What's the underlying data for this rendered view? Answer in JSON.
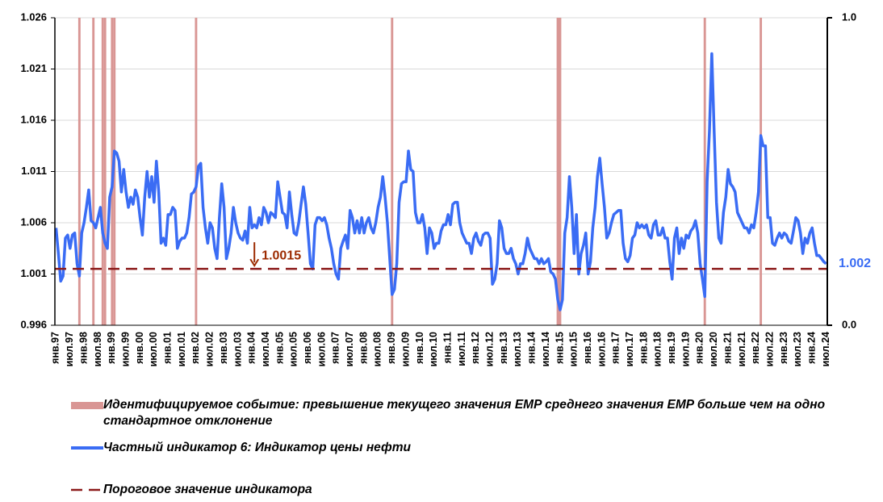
{
  "chart_data": {
    "type": "line",
    "categories": [
      "янв.97",
      null,
      null,
      null,
      null,
      null,
      "июл.97",
      null,
      null,
      null,
      null,
      null,
      "янв.98",
      null,
      null,
      null,
      null,
      null,
      "июл.98",
      null,
      null,
      null,
      null,
      null,
      "янв.99",
      null,
      null,
      null,
      null,
      null,
      "июл.99",
      null,
      null,
      null,
      null,
      null,
      "янв.00",
      null,
      null,
      null,
      null,
      null,
      "июл.00",
      null,
      null,
      null,
      null,
      null,
      "янв.01",
      null,
      null,
      null,
      null,
      null,
      "июл.01",
      null,
      null,
      null,
      null,
      null,
      "янв.02",
      null,
      null,
      null,
      null,
      null,
      "июл.02",
      null,
      null,
      null,
      null,
      null,
      "янв.03",
      null,
      null,
      null,
      null,
      null,
      "июл.03",
      null,
      null,
      null,
      null,
      null,
      "янв.04",
      null,
      null,
      null,
      null,
      null,
      "июл.04",
      null,
      null,
      null,
      null,
      null,
      "янв.05",
      null,
      null,
      null,
      null,
      null,
      "июл.05",
      null,
      null,
      null,
      null,
      null,
      "янв.06",
      null,
      null,
      null,
      null,
      null,
      "июл.06",
      null,
      null,
      null,
      null,
      null,
      "янв.07",
      null,
      null,
      null,
      null,
      null,
      "июл.07",
      null,
      null,
      null,
      null,
      null,
      "янв.08",
      null,
      null,
      null,
      null,
      null,
      "июл.08",
      null,
      null,
      null,
      null,
      null,
      "янв.09",
      null,
      null,
      null,
      null,
      null,
      "июл.09",
      null,
      null,
      null,
      null,
      null,
      "янв.10",
      null,
      null,
      null,
      null,
      null,
      "июл.10",
      null,
      null,
      null,
      null,
      null,
      "янв.11",
      null,
      null,
      null,
      null,
      null,
      "июл.11",
      null,
      null,
      null,
      null,
      null,
      "янв.12",
      null,
      null,
      null,
      null,
      null,
      "июл.12",
      null,
      null,
      null,
      null,
      null,
      "янв.13",
      null,
      null,
      null,
      null,
      null,
      "июл.13",
      null,
      null,
      null,
      null,
      null,
      "янв.14",
      null,
      null,
      null,
      null,
      null,
      "июл.14",
      null,
      null,
      null,
      null,
      null,
      "янв.15",
      null,
      null,
      null,
      null,
      null,
      "июл.15",
      null,
      null,
      null,
      null,
      null,
      "янв.16",
      null,
      null,
      null,
      null,
      null,
      "июл.16",
      null,
      null,
      null,
      null,
      null,
      "янв.17",
      null,
      null,
      null,
      null,
      null,
      "июл.17",
      null,
      null,
      null,
      null,
      null,
      "янв.18",
      null,
      null,
      null,
      null,
      null,
      "июл.18",
      null,
      null,
      null,
      null,
      null,
      "янв.19",
      null,
      null,
      null,
      null,
      null,
      "июл.19",
      null,
      null,
      null,
      null,
      null,
      "янв.20",
      null,
      null,
      null,
      null,
      null,
      "июл.20",
      null,
      null,
      null,
      null,
      null,
      "янв.21",
      null,
      null,
      null,
      null,
      null,
      "июл.21",
      null,
      null,
      null,
      null,
      null,
      "янв.22",
      null,
      null,
      null,
      null,
      null,
      "июл.22",
      null,
      null,
      null,
      null,
      null,
      "янв.23",
      null,
      null,
      null,
      null,
      null,
      "июл.23",
      null,
      null,
      null,
      null,
      null,
      "янв.24",
      null,
      null,
      null,
      null,
      null,
      "июл.24"
    ],
    "series": [
      {
        "name": "Идентифицируемое событие: превышение текущего значения EMP среднего значения EMP больше чем на одно стандартное отклонение",
        "type": "bar",
        "axis": "y2",
        "color": "#d99694",
        "values": [
          0,
          0,
          0,
          0,
          0,
          0,
          0,
          0,
          0,
          0,
          1,
          0,
          0,
          0,
          0,
          0,
          1,
          0,
          0,
          0,
          1,
          1,
          0,
          0,
          1,
          1,
          0,
          0,
          0,
          0,
          0,
          0,
          0,
          0,
          0,
          0,
          0,
          0,
          0,
          0,
          0,
          0,
          0,
          0,
          0,
          0,
          0,
          0,
          0,
          0,
          0,
          0,
          0,
          0,
          0,
          0,
          0,
          0,
          0,
          0,
          1,
          0,
          0,
          0,
          0,
          0,
          0,
          0,
          0,
          0,
          0,
          0,
          0,
          0,
          0,
          0,
          0,
          0,
          0,
          0,
          0,
          0,
          0,
          0,
          0,
          0,
          0,
          0,
          0,
          0,
          0,
          0,
          0,
          0,
          0,
          0,
          0,
          0,
          0,
          0,
          0,
          0,
          0,
          0,
          0,
          0,
          0,
          0,
          0,
          0,
          0,
          0,
          0,
          0,
          0,
          0,
          0,
          0,
          0,
          0,
          0,
          0,
          0,
          0,
          0,
          0,
          0,
          0,
          0,
          0,
          0,
          0,
          0,
          0,
          0,
          0,
          0,
          0,
          0,
          0,
          0,
          0,
          0,
          0,
          1,
          0,
          0,
          0,
          0,
          0,
          0,
          0,
          0,
          0,
          0,
          0,
          0,
          0,
          0,
          0,
          0,
          0,
          0,
          0,
          0,
          0,
          0,
          0,
          0,
          0,
          0,
          0,
          0,
          0,
          0,
          0,
          0,
          0,
          0,
          0,
          0,
          0,
          0,
          0,
          0,
          0,
          0,
          0,
          0,
          0,
          0,
          0,
          0,
          0,
          0,
          0,
          0,
          0,
          0,
          0,
          0,
          0,
          0,
          0,
          0,
          0,
          0,
          0,
          0,
          0,
          0,
          0,
          0,
          0,
          0,
          1,
          1,
          0,
          0,
          0,
          0,
          0,
          0,
          0,
          0,
          0,
          0,
          0,
          0,
          0,
          0,
          0,
          0,
          0,
          0,
          0,
          0,
          0,
          0,
          0,
          0,
          0,
          0,
          0,
          0,
          0,
          0,
          0,
          0,
          0,
          0,
          0,
          0,
          0,
          0,
          0,
          0,
          0,
          0,
          0,
          0,
          0,
          0,
          0,
          0,
          0,
          0,
          0,
          0,
          0,
          0,
          0,
          0,
          0,
          0,
          0,
          0,
          0,
          1,
          0,
          0,
          0,
          0,
          0,
          0,
          0,
          0,
          0,
          0,
          0,
          0,
          0,
          0,
          0,
          0,
          0,
          0,
          0,
          0,
          0,
          0,
          0,
          1,
          0,
          0,
          0,
          0,
          0,
          0,
          0,
          0,
          0,
          0,
          0,
          0,
          0,
          0,
          0,
          0,
          0,
          0,
          0,
          0,
          0,
          0,
          0,
          0,
          0,
          0,
          0,
          0
        ]
      },
      {
        "name": "Частный индикатор 6: Индикатор цены нефти",
        "type": "line",
        "color": "#3a6cf4",
        "values": [
          1.0055,
          1.003,
          1.0003,
          1.0008,
          1.0045,
          1.0048,
          1.0035,
          1.0048,
          1.005,
          1.002,
          1.0008,
          1.005,
          1.006,
          1.0075,
          1.0092,
          1.0062,
          1.006,
          1.0055,
          1.0065,
          1.0075,
          1.005,
          1.004,
          1.0035,
          1.0085,
          1.0095,
          1.013,
          1.0128,
          1.012,
          1.009,
          1.0112,
          1.009,
          1.0075,
          1.0085,
          1.0078,
          1.0092,
          1.0085,
          1.0065,
          1.0048,
          1.0085,
          1.011,
          1.0085,
          1.0105,
          1.008,
          1.012,
          1.009,
          1.004,
          1.0045,
          1.0038,
          1.0068,
          1.0068,
          1.0075,
          1.0072,
          1.0035,
          1.0042,
          1.0045,
          1.0045,
          1.005,
          1.0065,
          1.0088,
          1.009,
          1.0095,
          1.0115,
          1.0118,
          1.0075,
          1.0055,
          1.004,
          1.006,
          1.0055,
          1.0035,
          1.0025,
          1.0065,
          1.0098,
          1.0075,
          1.0025,
          1.0035,
          1.005,
          1.0075,
          1.006,
          1.005,
          1.0045,
          1.0043,
          1.0052,
          1.004,
          1.0075,
          1.0055,
          1.0058,
          1.0055,
          1.0065,
          1.0058,
          1.0075,
          1.007,
          1.006,
          1.007,
          1.0068,
          1.0065,
          1.01,
          1.0085,
          1.007,
          1.0068,
          1.0055,
          1.009,
          1.0068,
          1.005,
          1.0048,
          1.006,
          1.0078,
          1.0095,
          1.0078,
          1.005,
          1.002,
          1.0015,
          1.0058,
          1.0065,
          1.0065,
          1.0062,
          1.0065,
          1.0058,
          1.0045,
          1.0035,
          1.002,
          1.001,
          1.0005,
          1.0035,
          1.0042,
          1.0048,
          1.0035,
          1.0072,
          1.0065,
          1.005,
          1.0062,
          1.005,
          1.0065,
          1.005,
          1.006,
          1.0065,
          1.0055,
          1.005,
          1.006,
          1.0075,
          1.0085,
          1.0105,
          1.0085,
          1.006,
          1.0025,
          0.999,
          0.9995,
          1.002,
          1.008,
          1.0098,
          1.01,
          1.01,
          1.013,
          1.0112,
          1.011,
          1.007,
          1.006,
          1.006,
          1.0068,
          1.0055,
          1.003,
          1.0055,
          1.005,
          1.0035,
          1.004,
          1.004,
          1.0052,
          1.0058,
          1.0058,
          1.0068,
          1.0058,
          1.0078,
          1.008,
          1.008,
          1.006,
          1.005,
          1.0045,
          1.004,
          1.004,
          1.003,
          1.0045,
          1.005,
          1.0042,
          1.0038,
          1.0048,
          1.005,
          1.005,
          1.0045,
          1.0,
          1.0005,
          1.002,
          1.0062,
          1.0055,
          1.0035,
          1.003,
          1.003,
          1.0035,
          1.0025,
          1.002,
          1.001,
          1.002,
          1.002,
          1.003,
          1.0045,
          1.0035,
          1.003,
          1.0025,
          1.0025,
          1.002,
          1.0025,
          1.002,
          1.0022,
          1.0025,
          1.0012,
          1.001,
          1.0005,
          0.9985,
          0.9975,
          0.9985,
          1.005,
          1.0065,
          1.0105,
          1.0075,
          1.003,
          1.0068,
          1.001,
          1.003,
          1.0038,
          1.005,
          1.001,
          1.0022,
          1.0055,
          1.0075,
          1.0105,
          1.0123,
          1.0098,
          1.0075,
          1.0045,
          1.005,
          1.006,
          1.0068,
          1.007,
          1.0072,
          1.0072,
          1.004,
          1.0025,
          1.0022,
          1.0028,
          1.0045,
          1.0048,
          1.006,
          1.0055,
          1.0058,
          1.0055,
          1.0058,
          1.0048,
          1.0045,
          1.0058,
          1.0062,
          1.0048,
          1.0048,
          1.0055,
          1.0045,
          1.0045,
          1.0022,
          1.0005,
          1.0045,
          1.0055,
          1.003,
          1.0045,
          1.0035,
          1.0048,
          1.0045,
          1.0052,
          1.0055,
          1.0062,
          1.005,
          1.002,
          1.0005,
          0.9988,
          1.01,
          1.015,
          1.0225,
          1.015,
          1.008,
          1.0045,
          1.004,
          1.007,
          1.0085,
          1.0112,
          1.0098,
          1.0095,
          1.009,
          1.007,
          1.0065,
          1.006,
          1.0055,
          1.0055,
          1.005,
          1.0058,
          1.0055,
          1.007,
          1.009,
          1.0145,
          1.0135,
          1.0135,
          1.0065,
          1.0065,
          1.004,
          1.0038,
          1.0045,
          1.005,
          1.0045,
          1.005,
          1.0048,
          1.0042,
          1.004,
          1.0052,
          1.0065,
          1.0062,
          1.005,
          1.003,
          1.0045,
          1.004,
          1.005,
          1.0055,
          1.004,
          1.0028,
          1.0028,
          1.0025,
          1.0022,
          1.002
        ]
      }
    ],
    "threshold": {
      "name": "Пороговое значение индикатора",
      "value": 1.0015,
      "color": "#8b1a1a"
    },
    "ylim": [
      0.996,
      1.026
    ],
    "yticks": [
      0.996,
      1.001,
      1.006,
      1.011,
      1.016,
      1.021,
      1.026
    ],
    "y2lim": [
      0,
      1
    ],
    "y2ticks": [
      {
        "value": 0,
        "label": "0.0"
      },
      {
        "value": 1,
        "label": "1.0"
      }
    ],
    "grid": true
  }
}
